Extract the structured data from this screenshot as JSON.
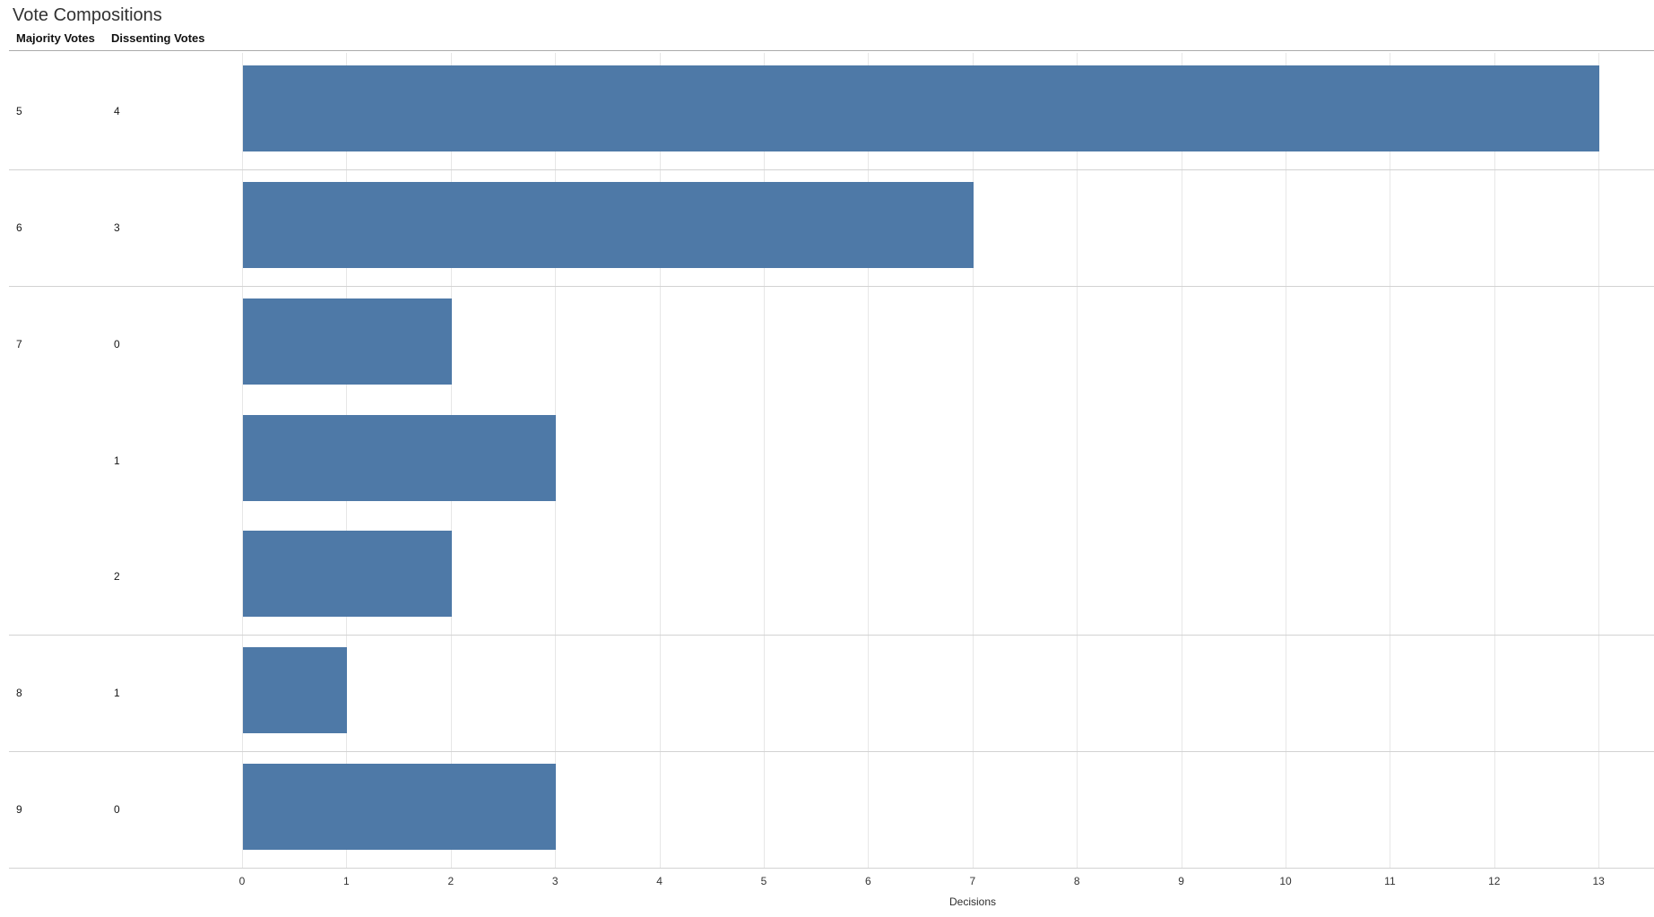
{
  "title": "Vote Compositions",
  "columns": {
    "majority": "Majority Votes",
    "dissenting": "Dissenting Votes"
  },
  "axis": {
    "label": "Decisions",
    "ticks": [
      0,
      1,
      2,
      3,
      4,
      5,
      6,
      7,
      8,
      9,
      10,
      11,
      12,
      13
    ]
  },
  "colors": {
    "bar": "#4e79a7",
    "grid": "#e7e7e7",
    "separator": "#d2d2d2",
    "header_rule": "#ababab"
  },
  "chart_data": {
    "type": "bar",
    "orientation": "horizontal",
    "title": "Vote Compositions",
    "xlabel": "Decisions",
    "xlim": [
      0,
      13.5
    ],
    "x_ticks": [
      0,
      1,
      2,
      3,
      4,
      5,
      6,
      7,
      8,
      9,
      10,
      11,
      12,
      13
    ],
    "grid": true,
    "row_headers": [
      "Majority Votes",
      "Dissenting Votes"
    ],
    "rows": [
      {
        "majority": "5",
        "dissenting": "4",
        "decisions": 13,
        "group_start": true
      },
      {
        "majority": "6",
        "dissenting": "3",
        "decisions": 7,
        "group_start": true
      },
      {
        "majority": "7",
        "dissenting": "0",
        "decisions": 2,
        "group_start": true
      },
      {
        "majority": "",
        "dissenting": "1",
        "decisions": 3,
        "group_start": false
      },
      {
        "majority": "",
        "dissenting": "2",
        "decisions": 2,
        "group_start": false
      },
      {
        "majority": "8",
        "dissenting": "1",
        "decisions": 1,
        "group_start": true
      },
      {
        "majority": "9",
        "dissenting": "0",
        "decisions": 3,
        "group_start": true
      }
    ]
  }
}
